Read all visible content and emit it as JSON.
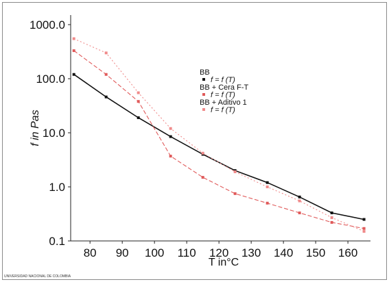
{
  "chart_data": {
    "type": "line",
    "xlabel": "T in°C",
    "ylabel": "f in Pas",
    "yscale": "log",
    "xlim": [
      74,
      167
    ],
    "ylim": [
      0.1,
      1000
    ],
    "grid": false,
    "legend_position": "center-right",
    "x_ticks": [
      "80",
      "90",
      "100",
      "110",
      "120",
      "130",
      "140",
      "150",
      "160"
    ],
    "y_ticks": [
      "1000.0",
      "100.0",
      "10.0",
      "1.0",
      "0.1"
    ],
    "series": [
      {
        "name": "BB",
        "curve_label": "f = f (T)",
        "color": "#111111",
        "style": "solid",
        "x": [
          75,
          85,
          95,
          105,
          115,
          125,
          135,
          145,
          155,
          165
        ],
        "y": [
          120,
          46,
          19,
          8.5,
          4.0,
          2.0,
          1.2,
          0.65,
          0.33,
          0.25
        ]
      },
      {
        "name": "BB + Cera F-T",
        "curve_label": "f = f (T)",
        "color": "#e05a5a",
        "style": "dashed",
        "x": [
          75,
          85,
          95,
          105,
          115,
          125,
          135,
          145,
          155,
          165
        ],
        "y": [
          330,
          120,
          38,
          3.7,
          1.5,
          0.75,
          0.5,
          0.33,
          0.22,
          0.17
        ]
      },
      {
        "name": "BB + Aditivo 1",
        "curve_label": "f = f (T)",
        "color": "#f08a8a",
        "style": "dotted",
        "x": [
          75,
          85,
          95,
          105,
          115,
          125,
          135,
          145,
          155,
          165
        ],
        "y": [
          550,
          300,
          55,
          12,
          4.2,
          1.9,
          1.0,
          0.55,
          0.27,
          0.15
        ]
      }
    ],
    "source_note": "UNIVERSIDAD NACIONAL DE COLOMBIA"
  }
}
